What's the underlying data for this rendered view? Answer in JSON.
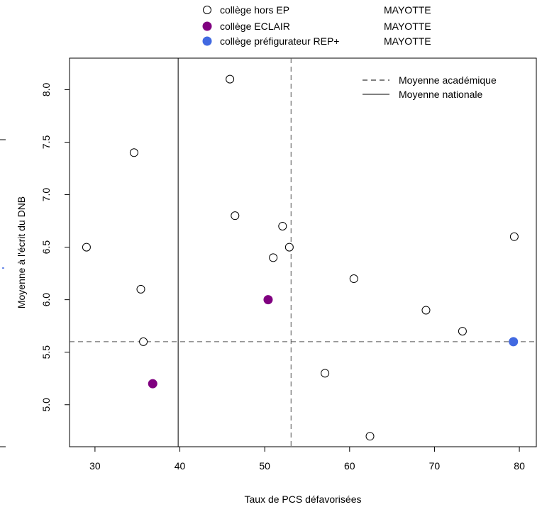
{
  "chart_data": {
    "type": "scatter",
    "xlabel": "Taux de PCS défavorisées",
    "ylabel": "Moyenne à l'écrit du DNB",
    "xlim": [
      27,
      82
    ],
    "ylim": [
      4.6,
      8.3
    ],
    "x_ticks": [
      "30",
      "40",
      "50",
      "60",
      "70",
      "80"
    ],
    "y_ticks": [
      "5.0",
      "5.5",
      "6.0",
      "6.5",
      "7.0",
      "7.5",
      "8.0"
    ],
    "grid": false,
    "reference_lines": [
      {
        "name": "Moyenne académique",
        "orientation": "vertical",
        "value": 53.1,
        "style": "dashed"
      },
      {
        "name": "Moyenne académique",
        "orientation": "horizontal",
        "value": 5.6,
        "style": "dashed"
      },
      {
        "name": "Moyenne nationale",
        "orientation": "vertical",
        "value": 39.8,
        "style": "solid"
      }
    ],
    "series": [
      {
        "name": "collège hors EP",
        "academy": "MAYOTTE",
        "marker": "open-circle",
        "color": "#000000",
        "points": [
          {
            "x": 45.9,
            "y": 8.1
          },
          {
            "x": 34.6,
            "y": 7.4
          },
          {
            "x": 46.5,
            "y": 6.8
          },
          {
            "x": 52.1,
            "y": 6.7
          },
          {
            "x": 29.0,
            "y": 6.5
          },
          {
            "x": 52.9,
            "y": 6.5
          },
          {
            "x": 51.0,
            "y": 6.4
          },
          {
            "x": 60.5,
            "y": 6.2
          },
          {
            "x": 35.4,
            "y": 6.1
          },
          {
            "x": 79.4,
            "y": 6.6
          },
          {
            "x": 69.0,
            "y": 5.9
          },
          {
            "x": 73.3,
            "y": 5.7
          },
          {
            "x": 35.7,
            "y": 5.6
          },
          {
            "x": 57.1,
            "y": 5.3
          },
          {
            "x": 62.4,
            "y": 4.7
          }
        ]
      },
      {
        "name": "collège ECLAIR",
        "academy": "MAYOTTE",
        "marker": "filled-circle",
        "color": "#800080",
        "points": [
          {
            "x": 50.4,
            "y": 6.0
          },
          {
            "x": 36.8,
            "y": 5.2
          }
        ]
      },
      {
        "name": "collège préfigurateur REP+",
        "academy": "MAYOTTE",
        "marker": "filled-circle",
        "color": "#4169E1",
        "points": [
          {
            "x": 79.3,
            "y": 5.6
          }
        ]
      }
    ],
    "legends": {
      "top": [
        {
          "label": "collège hors EP",
          "academy": "MAYOTTE"
        },
        {
          "label": "collège ECLAIR",
          "academy": "MAYOTTE"
        },
        {
          "label": "collège préfigurateur REP+",
          "academy": "MAYOTTE"
        }
      ],
      "inset": [
        {
          "label": "Moyenne académique",
          "style": "dashed"
        },
        {
          "label": "Moyenne nationale",
          "style": "solid"
        }
      ]
    }
  }
}
